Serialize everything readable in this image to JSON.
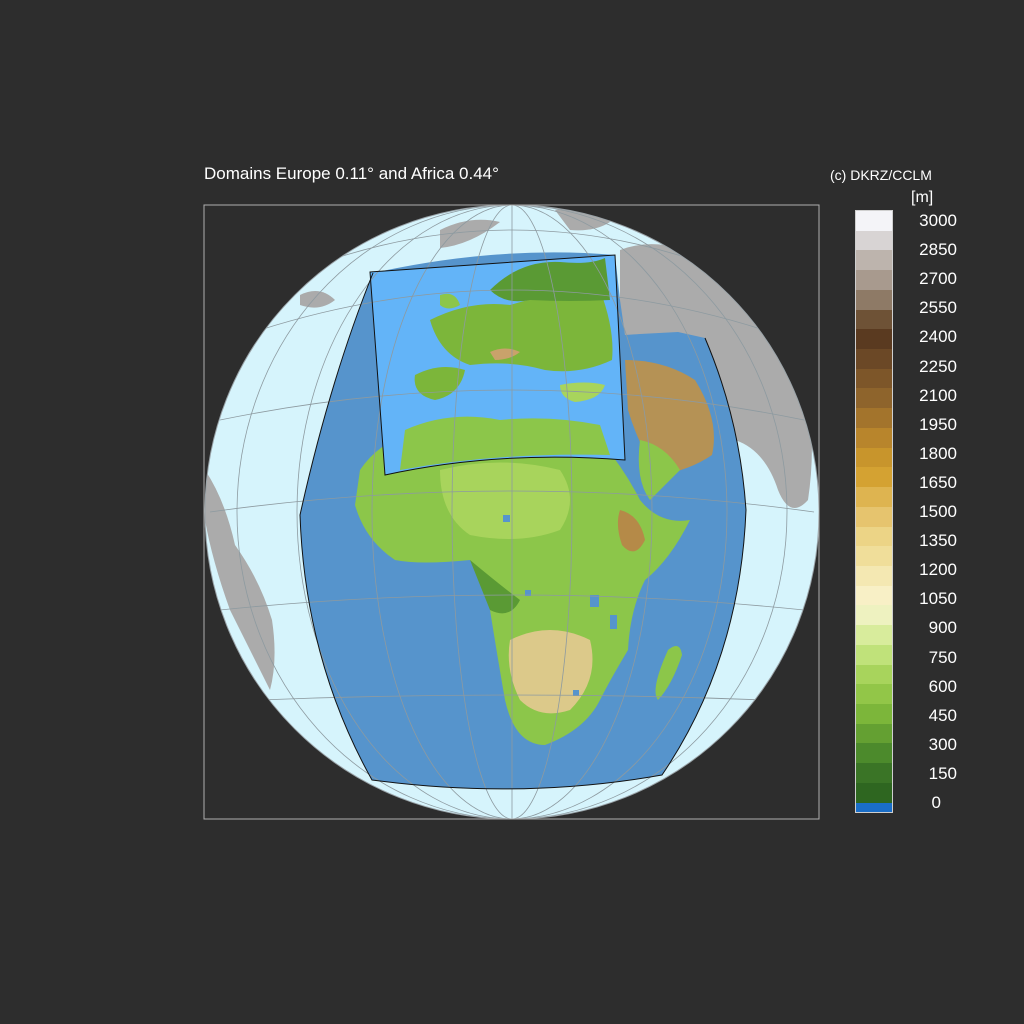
{
  "title": "Domains Europe 0.11° and Africa 0.44°",
  "copyright": "(c) DKRZ/CCLM",
  "colorbar": {
    "unit": "[m]",
    "tick_labels": [
      "3000",
      "2850",
      "2700",
      "2550",
      "2400",
      "2250",
      "2100",
      "1950",
      "1800",
      "1650",
      "1500",
      "1350",
      "1200",
      "1050",
      "900",
      "750",
      "600",
      "450",
      "300",
      "150",
      "0"
    ],
    "colors_top_to_bottom": [
      "#f4f4f8",
      "#d8d4d4",
      "#bdb4ad",
      "#a89a8e",
      "#8e7a66",
      "#6e5236",
      "#5a3a20",
      "#6b4826",
      "#7d5629",
      "#8e642c",
      "#a3742c",
      "#b8852c",
      "#c8952c",
      "#d4a232",
      "#deb450",
      "#e6c46e",
      "#ecd486",
      "#f0de9a",
      "#f4e8b2",
      "#f8f0c6",
      "#eef2c0",
      "#d8ec9c",
      "#c0e27a",
      "#a8d45c",
      "#92c648",
      "#7cb63a",
      "#64a032",
      "#4c8a2c",
      "#3a7426",
      "#2e6620",
      "#1a6ec8"
    ],
    "sea_color": "#1a6ec8"
  },
  "map": {
    "ocean_outer_color": "#d6f4fc",
    "domain_ocean_color": "#5694cc",
    "land_outside_color": "#ababab",
    "domains": [
      "Europe 0.11°",
      "Africa 0.44°"
    ]
  }
}
